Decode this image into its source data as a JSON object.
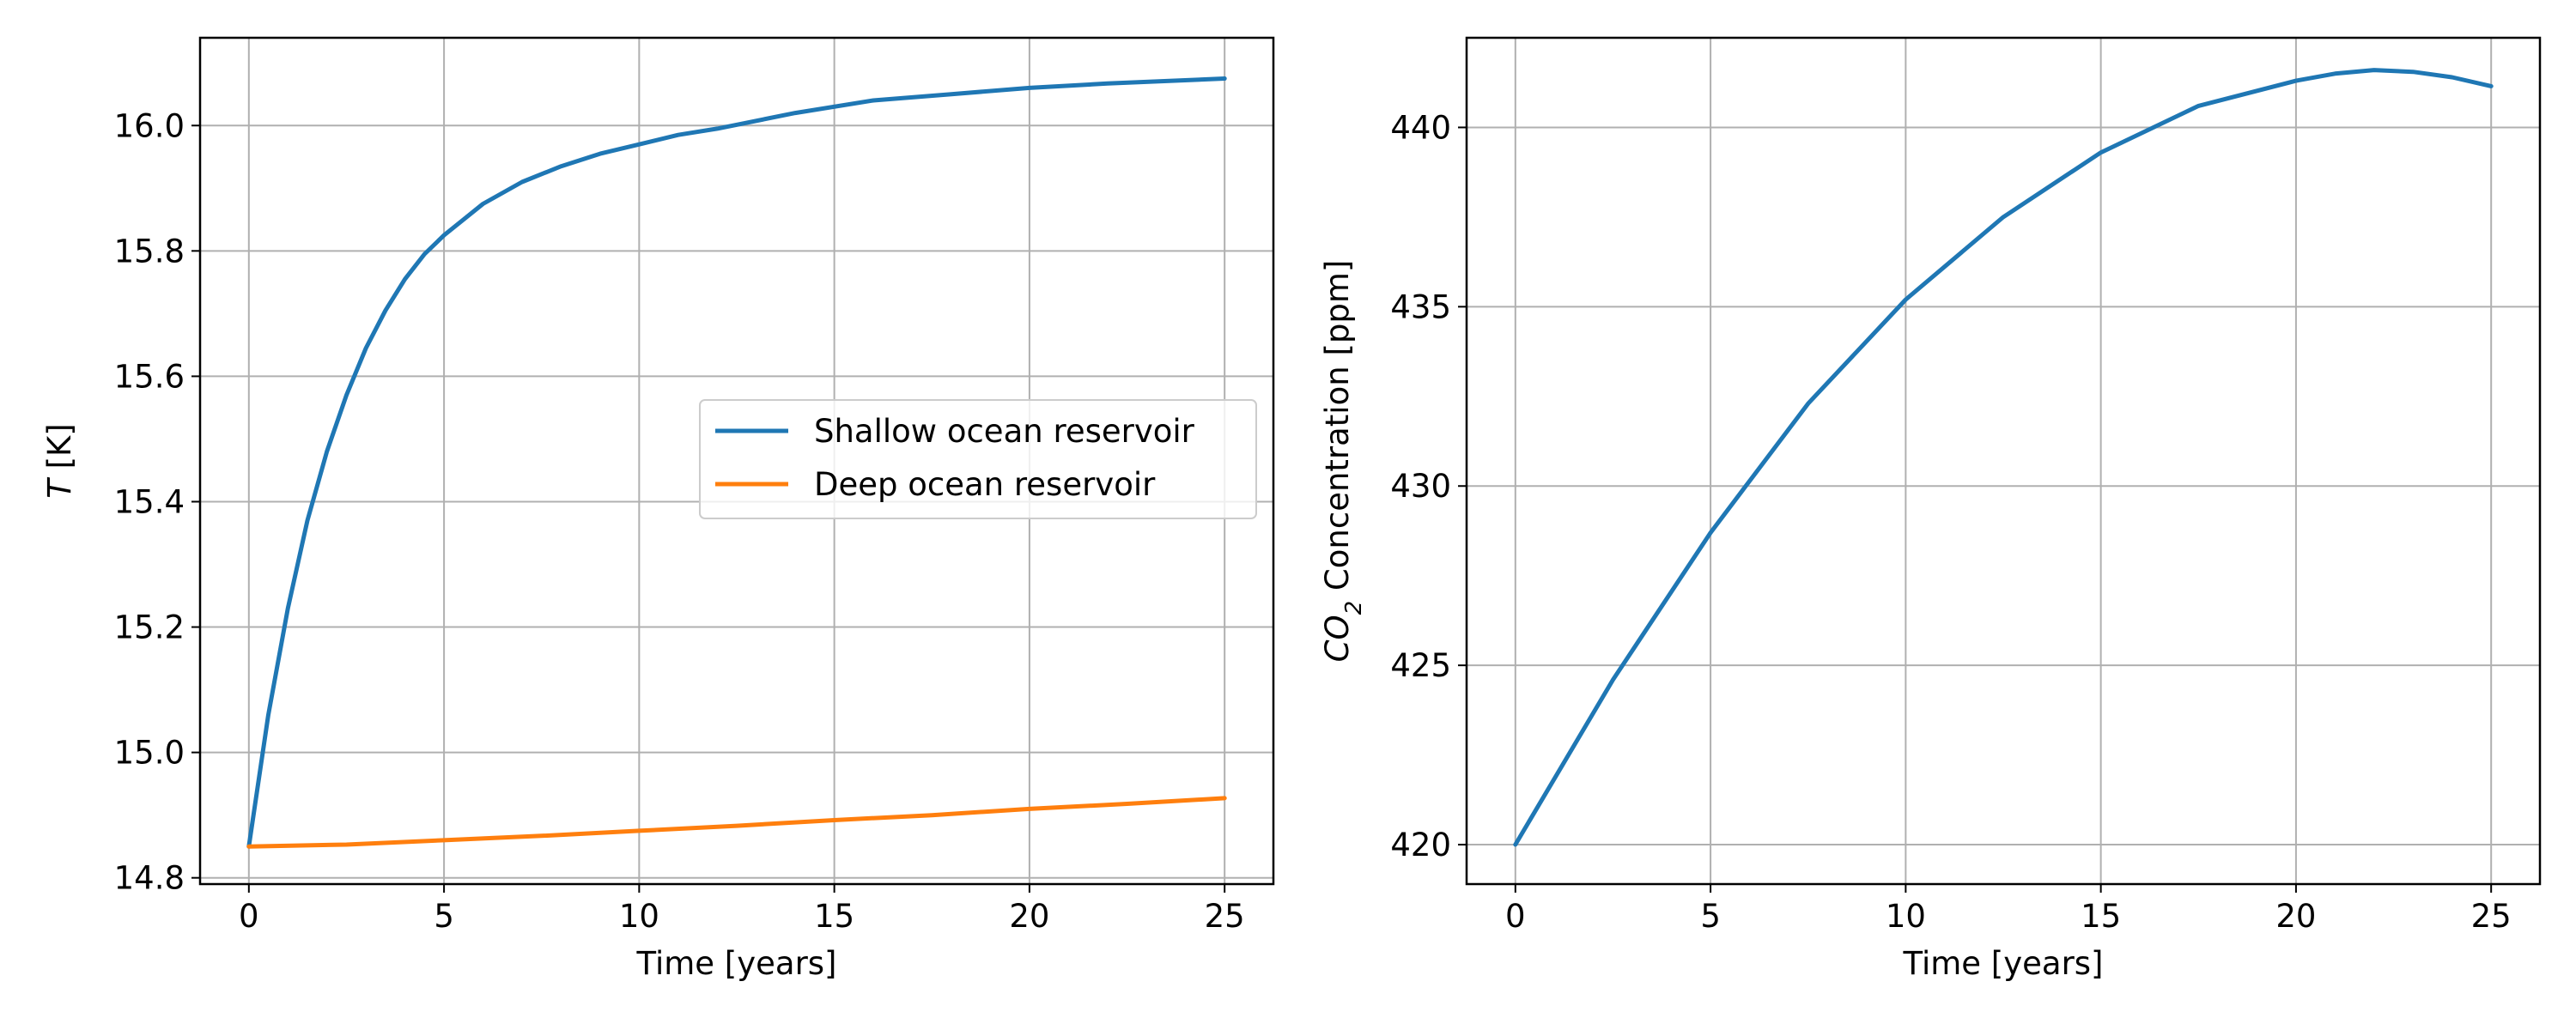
{
  "chart_data": [
    {
      "type": "line",
      "title": "",
      "xlabel": "Time [years]",
      "ylabel_var": "T",
      "ylabel_unit": " [K]",
      "xlim": [
        -1.25,
        26.25
      ],
      "ylim": [
        14.79,
        16.14
      ],
      "xticks": [
        0,
        5,
        10,
        15,
        20,
        25
      ],
      "yticks": [
        14.8,
        15.0,
        15.2,
        15.4,
        15.6,
        15.8,
        16.0
      ],
      "ytick_labels": [
        "14.8",
        "15.0",
        "15.2",
        "15.4",
        "15.6",
        "15.8",
        "16.0"
      ],
      "grid": true,
      "legend": "center-right",
      "series": [
        {
          "name": "Shallow ocean reservoir",
          "color": "#1f77b4",
          "x": [
            0,
            0.5,
            1,
            1.5,
            2,
            2.5,
            3,
            3.5,
            4,
            4.5,
            5,
            6,
            7,
            8,
            9,
            10,
            11,
            12,
            14,
            16,
            18,
            20,
            22,
            25
          ],
          "y": [
            14.85,
            15.06,
            15.23,
            15.37,
            15.48,
            15.57,
            15.645,
            15.705,
            15.755,
            15.795,
            15.825,
            15.875,
            15.91,
            15.935,
            15.955,
            15.97,
            15.985,
            15.995,
            16.02,
            16.04,
            16.05,
            16.06,
            16.067,
            16.075
          ]
        },
        {
          "name": "Deep ocean reservoir",
          "color": "#ff7f0e",
          "x": [
            0,
            2.5,
            5,
            7.5,
            10,
            12.5,
            15,
            17.5,
            20,
            22.5,
            25
          ],
          "y": [
            14.85,
            14.853,
            14.86,
            14.867,
            14.875,
            14.883,
            14.892,
            14.9,
            14.91,
            14.918,
            14.927
          ]
        }
      ]
    },
    {
      "type": "line",
      "title": "",
      "xlabel": "Time [years]",
      "ylabel_var": "CO",
      "ylabel_sub": "2",
      "ylabel_unit": " Concentration [ppm]",
      "xlim": [
        -1.25,
        26.25
      ],
      "ylim": [
        418.9,
        442.5
      ],
      "xticks": [
        0,
        5,
        10,
        15,
        20,
        25
      ],
      "yticks": [
        420,
        425,
        430,
        435,
        440
      ],
      "ytick_labels": [
        "420",
        "425",
        "430",
        "435",
        "440"
      ],
      "grid": true,
      "series": [
        {
          "color": "#1f77b4",
          "x": [
            0,
            2.5,
            5,
            7.5,
            10,
            12.5,
            15,
            17.5,
            20,
            21,
            22,
            23,
            24,
            25
          ],
          "y": [
            420.0,
            424.6,
            428.7,
            432.3,
            435.2,
            437.5,
            439.3,
            440.6,
            441.3,
            441.5,
            441.6,
            441.55,
            441.4,
            441.15
          ]
        }
      ]
    }
  ]
}
